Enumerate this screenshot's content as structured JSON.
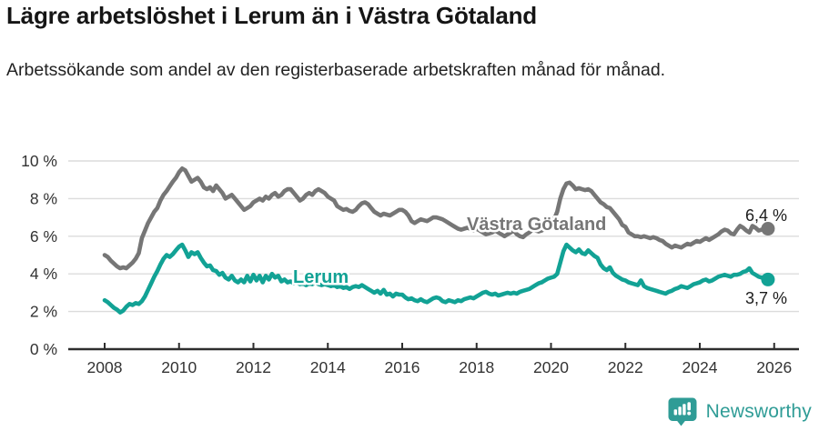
{
  "title": "Lägre arbetslöshet i Lerum än i Västra Götaland",
  "subtitle": "Arbetssökande som andel av den registerbaserade arbetskraften månad för månad.",
  "footer": {
    "brand": "Newsworthy",
    "brand_color": "#2F9C96",
    "logo_icon": "newsworthy-chart-bubble-icon"
  },
  "chart_data": {
    "type": "line",
    "unit": "%",
    "grid": "horizontal",
    "x_start_year": 2008,
    "points_per_year": 12,
    "x_axis": {
      "tick_labels": [
        "2008",
        "2010",
        "2012",
        "2014",
        "2016",
        "2018",
        "2020",
        "2022",
        "2024",
        "2026"
      ],
      "range_years": [
        2008,
        2026
      ]
    },
    "y_axis": {
      "ticks": [
        {
          "value": 0,
          "label": "0 %"
        },
        {
          "value": 2,
          "label": "2 %"
        },
        {
          "value": 4,
          "label": "4 %"
        },
        {
          "value": 6,
          "label": "6 %"
        },
        {
          "value": 8,
          "label": "8 %"
        },
        {
          "value": 10,
          "label": "10 %"
        }
      ],
      "ylim": [
        0,
        10.5
      ]
    },
    "series": [
      {
        "name": "Västra Götaland",
        "slug": "vastra-gotaland",
        "color": "#767676",
        "end_label": "6,4 %",
        "last_value": 6.4,
        "values": [
          5.0,
          4.9,
          4.7,
          4.55,
          4.4,
          4.3,
          4.35,
          4.3,
          4.45,
          4.6,
          4.8,
          5.1,
          5.9,
          6.3,
          6.7,
          7.0,
          7.3,
          7.5,
          7.9,
          8.2,
          8.4,
          8.65,
          8.9,
          9.1,
          9.4,
          9.6,
          9.5,
          9.2,
          8.9,
          9.0,
          9.1,
          8.9,
          8.6,
          8.5,
          8.6,
          8.4,
          8.7,
          8.5,
          8.3,
          8.0,
          8.1,
          8.2,
          8.0,
          7.8,
          7.6,
          7.4,
          7.5,
          7.6,
          7.8,
          7.9,
          8.0,
          7.9,
          8.1,
          8.0,
          8.2,
          8.3,
          8.1,
          8.2,
          8.4,
          8.5,
          8.5,
          8.3,
          8.1,
          7.9,
          8.0,
          8.2,
          8.3,
          8.2,
          8.4,
          8.5,
          8.4,
          8.3,
          8.1,
          8.0,
          7.9,
          7.6,
          7.5,
          7.4,
          7.45,
          7.35,
          7.3,
          7.4,
          7.6,
          7.75,
          7.8,
          7.7,
          7.5,
          7.3,
          7.2,
          7.1,
          7.2,
          7.15,
          7.1,
          7.2,
          7.3,
          7.4,
          7.4,
          7.3,
          7.1,
          6.8,
          6.7,
          6.8,
          6.9,
          6.85,
          6.8,
          6.9,
          7.0,
          7.0,
          6.95,
          6.9,
          6.8,
          6.7,
          6.6,
          6.5,
          6.4,
          6.35,
          6.4,
          6.45,
          6.4,
          6.3,
          6.4,
          6.3,
          6.2,
          6.1,
          6.15,
          6.2,
          6.3,
          6.2,
          6.1,
          6.0,
          6.1,
          6.2,
          6.3,
          6.1,
          6.0,
          5.95,
          6.1,
          6.2,
          6.35,
          6.3,
          6.25,
          6.3,
          6.4,
          6.5,
          6.7,
          6.9,
          7.3,
          8.0,
          8.5,
          8.8,
          8.85,
          8.7,
          8.5,
          8.55,
          8.5,
          8.45,
          8.5,
          8.4,
          8.2,
          8.0,
          7.8,
          7.7,
          7.55,
          7.5,
          7.3,
          7.1,
          6.9,
          6.6,
          6.5,
          6.2,
          6.1,
          6.0,
          6.0,
          5.95,
          6.0,
          5.95,
          5.9,
          5.95,
          5.9,
          5.8,
          5.75,
          5.6,
          5.5,
          5.4,
          5.5,
          5.45,
          5.4,
          5.5,
          5.6,
          5.55,
          5.65,
          5.75,
          5.7,
          5.8,
          5.9,
          5.8,
          5.9,
          6.0,
          6.1,
          6.25,
          6.35,
          6.3,
          6.15,
          6.1,
          6.35,
          6.55,
          6.45,
          6.3,
          6.2,
          6.55,
          6.45,
          6.3,
          6.35,
          6.45,
          6.4
        ]
      },
      {
        "name": "Lerum",
        "slug": "lerum",
        "color": "#12A295",
        "end_label": "3,7 %",
        "last_value": 3.7,
        "values": [
          2.6,
          2.5,
          2.35,
          2.2,
          2.1,
          1.95,
          2.05,
          2.25,
          2.4,
          2.35,
          2.45,
          2.4,
          2.55,
          2.8,
          3.15,
          3.5,
          3.85,
          4.15,
          4.5,
          4.8,
          5.0,
          4.9,
          5.05,
          5.25,
          5.45,
          5.55,
          5.25,
          4.9,
          5.15,
          5.05,
          5.15,
          4.85,
          4.6,
          4.4,
          4.45,
          4.2,
          4.15,
          3.95,
          4.05,
          3.8,
          3.7,
          3.9,
          3.65,
          3.55,
          3.7,
          3.55,
          3.9,
          3.6,
          3.95,
          3.65,
          3.9,
          3.55,
          3.9,
          3.7,
          4.0,
          3.8,
          3.9,
          3.6,
          3.7,
          3.55,
          3.6,
          3.5,
          3.55,
          3.45,
          3.5,
          3.4,
          3.5,
          3.45,
          3.55,
          3.45,
          3.4,
          3.45,
          3.4,
          3.35,
          3.4,
          3.3,
          3.35,
          3.25,
          3.3,
          3.2,
          3.3,
          3.35,
          3.3,
          3.4,
          3.3,
          3.2,
          3.1,
          3.0,
          3.1,
          2.95,
          3.15,
          2.9,
          2.95,
          2.8,
          2.95,
          2.9,
          2.9,
          2.75,
          2.65,
          2.7,
          2.6,
          2.55,
          2.65,
          2.55,
          2.5,
          2.6,
          2.7,
          2.75,
          2.7,
          2.55,
          2.5,
          2.6,
          2.55,
          2.5,
          2.6,
          2.55,
          2.65,
          2.7,
          2.75,
          2.7,
          2.8,
          2.9,
          3.0,
          3.05,
          2.95,
          2.9,
          2.95,
          2.85,
          2.9,
          2.95,
          3.0,
          2.95,
          3.0,
          2.95,
          3.05,
          3.1,
          3.15,
          3.2,
          3.3,
          3.4,
          3.5,
          3.55,
          3.65,
          3.75,
          3.8,
          3.85,
          4.0,
          4.6,
          5.2,
          5.55,
          5.4,
          5.25,
          5.15,
          5.3,
          5.1,
          5.05,
          5.25,
          5.1,
          4.95,
          4.85,
          4.5,
          4.3,
          4.2,
          4.35,
          4.05,
          3.9,
          3.8,
          3.7,
          3.65,
          3.55,
          3.5,
          3.45,
          3.4,
          3.65,
          3.35,
          3.25,
          3.2,
          3.15,
          3.1,
          3.05,
          3.0,
          2.95,
          3.05,
          3.1,
          3.2,
          3.25,
          3.35,
          3.3,
          3.25,
          3.35,
          3.45,
          3.5,
          3.55,
          3.65,
          3.7,
          3.6,
          3.65,
          3.75,
          3.85,
          3.9,
          3.95,
          3.9,
          3.85,
          3.95,
          3.95,
          4.0,
          4.1,
          4.15,
          4.3,
          4.05,
          3.95,
          3.85,
          3.8,
          3.85,
          3.7
        ]
      }
    ]
  }
}
